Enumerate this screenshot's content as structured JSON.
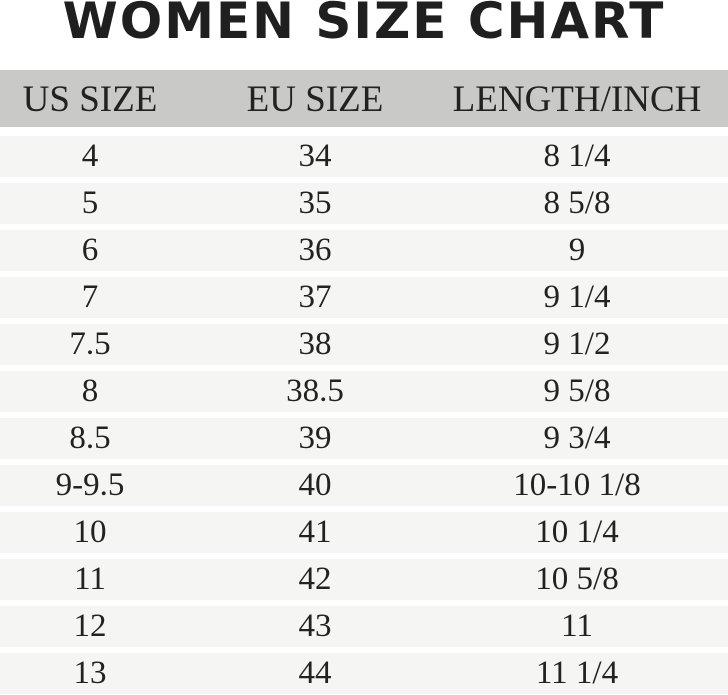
{
  "title": "WOMEN SIZE CHART",
  "columns": [
    "US SIZE",
    "EU SIZE",
    "LENGTH/INCH"
  ],
  "rows": [
    [
      "4",
      "34",
      "8 1/4"
    ],
    [
      "5",
      "35",
      "8 5/8"
    ],
    [
      "6",
      "36",
      "9"
    ],
    [
      "7",
      "37",
      "9 1/4"
    ],
    [
      "7.5",
      "38",
      "9 1/2"
    ],
    [
      "8",
      "38.5",
      "9 5/8"
    ],
    [
      "8.5",
      "39",
      "9 3/4"
    ],
    [
      "9-9.5",
      "40",
      "10-10 1/8"
    ],
    [
      "10",
      "41",
      "10 1/4"
    ],
    [
      "11",
      "42",
      "10 5/8"
    ],
    [
      "12",
      "43",
      "11"
    ],
    [
      "13",
      "44",
      "11 1/4"
    ]
  ]
}
